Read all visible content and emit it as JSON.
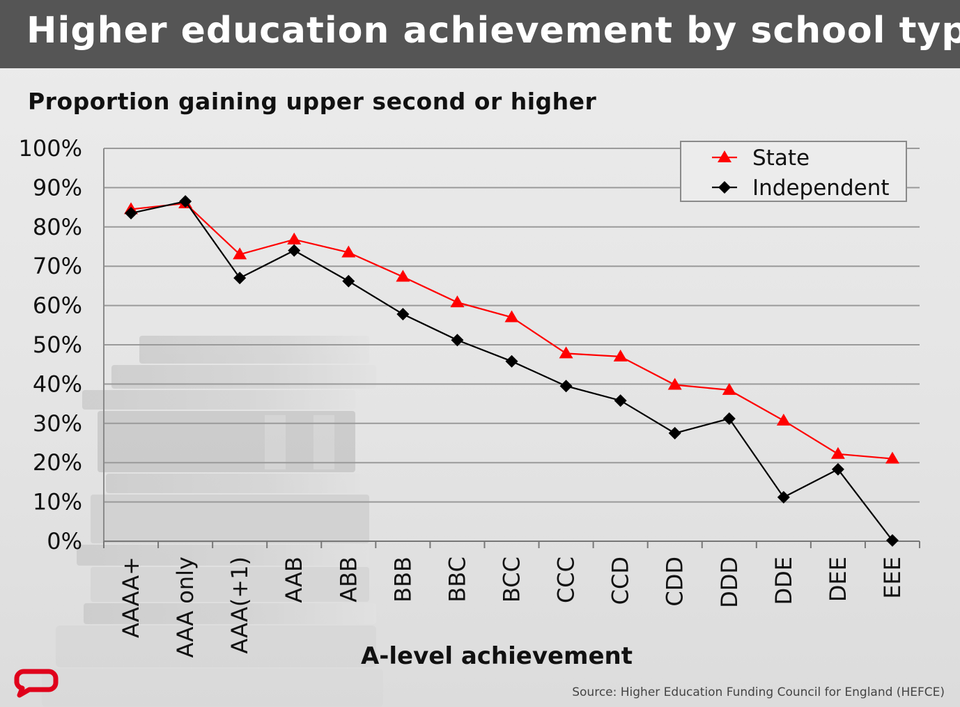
{
  "header": {
    "title": "Higher education achievement by school type"
  },
  "chart_data": {
    "type": "line",
    "title": "Higher education achievement by school type",
    "subtitle": "Proportion gaining upper second or higher",
    "xlabel": "A-level achievement",
    "ylabel": "",
    "ylim": [
      0,
      100
    ],
    "yticks": [
      "0%",
      "10%",
      "20%",
      "30%",
      "40%",
      "50%",
      "60%",
      "70%",
      "80%",
      "90%",
      "100%"
    ],
    "categories": [
      "AAAA+",
      "AAA only",
      "AAA(+1)",
      "AAB",
      "ABB",
      "BBB",
      "BBC",
      "BCC",
      "CCC",
      "CCD",
      "CDD",
      "DDD",
      "DDE",
      "DEE",
      "EEE"
    ],
    "series": [
      {
        "name": "State",
        "color": "#ff0000",
        "marker": "triangle",
        "values": [
          84.5,
          86,
          73,
          76.8,
          73.5,
          67.3,
          60.8,
          57,
          47.8,
          47,
          39.8,
          38.5,
          30.7,
          22.2,
          21
        ]
      },
      {
        "name": "Independent",
        "color": "#000000",
        "marker": "diamond",
        "values": [
          83.5,
          86.5,
          67,
          74,
          66.2,
          57.8,
          51.2,
          45.8,
          39.5,
          35.8,
          27.5,
          31.2,
          11.2,
          18.3,
          0.2
        ]
      }
    ],
    "grid": true,
    "legend_position": "top-right"
  },
  "footer": {
    "source": "Source: Higher Education Funding Council for England (HEFCE)",
    "logo_icon": "speech-bubble-logo-icon"
  }
}
